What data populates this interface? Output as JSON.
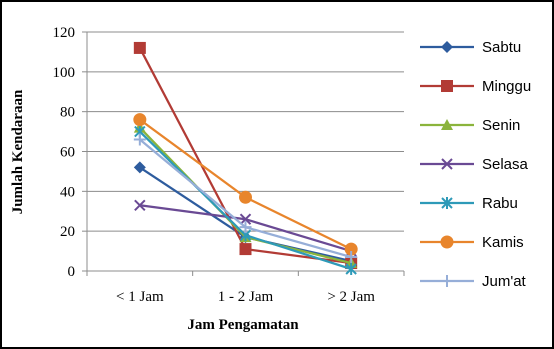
{
  "chart_data": {
    "type": "line",
    "categories": [
      "< 1 Jam",
      "1 - 2 Jam",
      "> 2 Jam"
    ],
    "series": [
      {
        "name": "Sabtu",
        "color": "#2E5C9E",
        "marker": "diamond",
        "values": [
          52,
          17,
          5
        ]
      },
      {
        "name": "Minggu",
        "color": "#B23B35",
        "marker": "square",
        "values": [
          112,
          11,
          4
        ]
      },
      {
        "name": "Senin",
        "color": "#8BB43C",
        "marker": "triangle",
        "values": [
          72,
          17,
          4
        ]
      },
      {
        "name": "Selasa",
        "color": "#6A4A94",
        "marker": "x",
        "values": [
          33,
          26,
          10
        ]
      },
      {
        "name": "Rabu",
        "color": "#2E9AB8",
        "marker": "asterisk",
        "values": [
          70,
          18,
          1
        ]
      },
      {
        "name": "Kamis",
        "color": "#E8852C",
        "marker": "circle",
        "values": [
          76,
          37,
          11
        ]
      },
      {
        "name": "Jum'at",
        "color": "#96AED8",
        "marker": "plus",
        "values": [
          66,
          22,
          7
        ]
      }
    ],
    "title": "",
    "xlabel": "Jam Pengamatan",
    "ylabel": "Jumlah Kendaraan",
    "ylim": [
      0,
      120
    ],
    "yticks": [
      0,
      20,
      40,
      60,
      80,
      100,
      120
    ],
    "grid": true,
    "legend_position": "right"
  }
}
